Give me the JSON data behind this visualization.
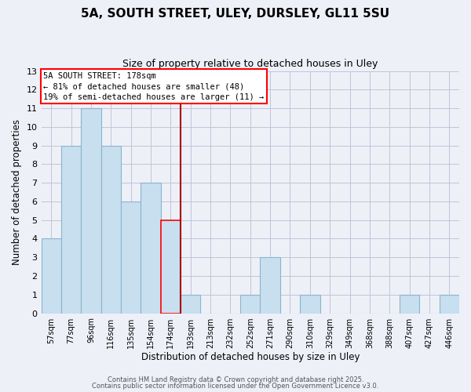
{
  "title": "5A, SOUTH STREET, ULEY, DURSLEY, GL11 5SU",
  "subtitle": "Size of property relative to detached houses in Uley",
  "xlabel": "Distribution of detached houses by size in Uley",
  "ylabel": "Number of detached properties",
  "bar_labels": [
    "57sqm",
    "77sqm",
    "96sqm",
    "116sqm",
    "135sqm",
    "154sqm",
    "174sqm",
    "193sqm",
    "213sqm",
    "232sqm",
    "252sqm",
    "271sqm",
    "290sqm",
    "310sqm",
    "329sqm",
    "349sqm",
    "368sqm",
    "388sqm",
    "407sqm",
    "427sqm",
    "446sqm"
  ],
  "bar_values": [
    4,
    9,
    11,
    9,
    6,
    7,
    5,
    1,
    0,
    0,
    1,
    3,
    0,
    1,
    0,
    0,
    0,
    0,
    1,
    0,
    1
  ],
  "bar_color": "#c8dff0",
  "bar_edge_color": "#8ab4cc",
  "highlight_bar_index": 6,
  "highlight_bar_edge_color": "red",
  "vline_x": 6.5,
  "vline_color": "#aa0000",
  "ylim": [
    0,
    13
  ],
  "yticks": [
    0,
    1,
    2,
    3,
    4,
    5,
    6,
    7,
    8,
    9,
    10,
    11,
    12,
    13
  ],
  "annotation_title": "5A SOUTH STREET: 178sqm",
  "annotation_line1": "← 81% of detached houses are smaller (48)",
  "annotation_line2": "19% of semi-detached houses are larger (11) →",
  "footer1": "Contains HM Land Registry data © Crown copyright and database right 2025.",
  "footer2": "Contains public sector information licensed under the Open Government Licence v3.0.",
  "background_color": "#eef0f8",
  "grid_color": "#c0c4d8"
}
